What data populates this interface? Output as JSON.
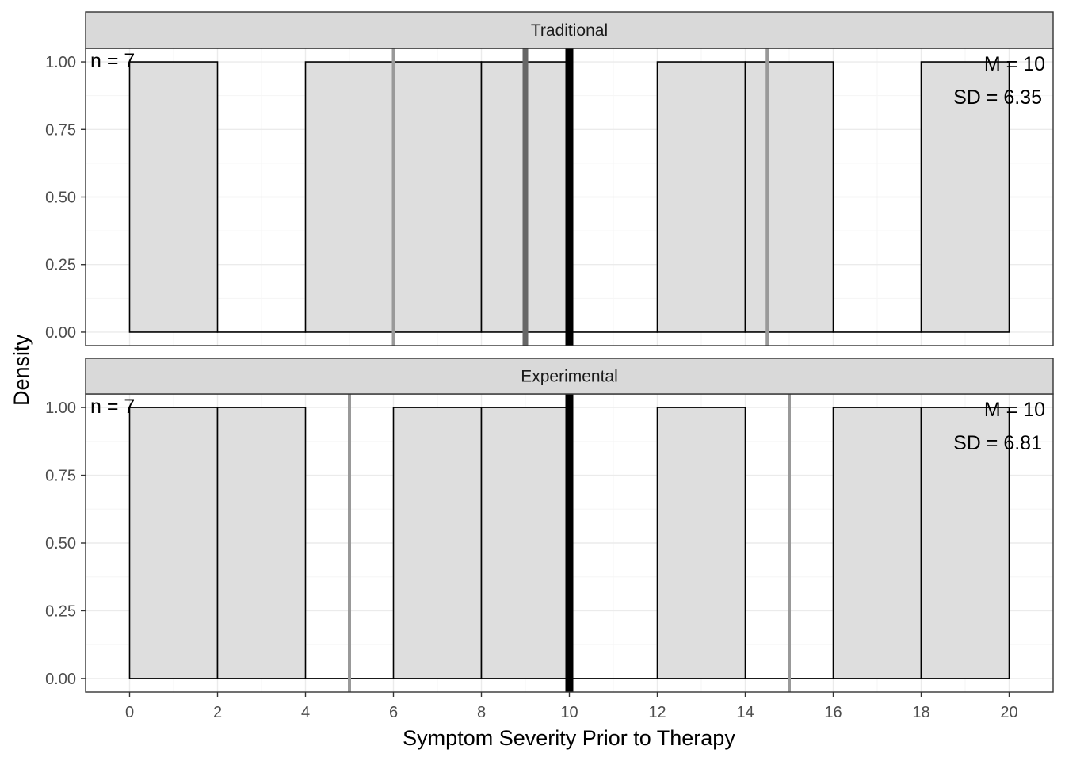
{
  "chart_data": {
    "type": "histogram",
    "xlabel": "Symptom Severity Prior to Therapy",
    "ylabel": "Density",
    "xlim": [
      -1,
      21
    ],
    "ylim": [
      -0.05,
      1.05
    ],
    "x_ticks": [
      0,
      2,
      4,
      6,
      8,
      10,
      12,
      14,
      16,
      18,
      20
    ],
    "y_ticks": [
      0,
      0.25,
      0.5,
      0.75,
      1.0
    ],
    "x_tick_labels": [
      "0",
      "2",
      "4",
      "6",
      "8",
      "10",
      "12",
      "14",
      "16",
      "18",
      "20"
    ],
    "y_tick_labels": [
      "0.00",
      "0.25",
      "0.50",
      "0.75",
      "1.00"
    ],
    "grid": true,
    "panels": [
      {
        "name": "Traditional",
        "bins": [
          {
            "start": 0,
            "end": 2,
            "density": 1.0
          },
          {
            "start": 2,
            "end": 4,
            "density": 0.0
          },
          {
            "start": 4,
            "end": 6,
            "density": 1.0
          },
          {
            "start": 6,
            "end": 8,
            "density": 1.0
          },
          {
            "start": 8,
            "end": 10,
            "density": 1.0
          },
          {
            "start": 10,
            "end": 12,
            "density": 0.0
          },
          {
            "start": 12,
            "end": 14,
            "density": 1.0
          },
          {
            "start": 14,
            "end": 16,
            "density": 1.0
          },
          {
            "start": 16,
            "end": 18,
            "density": 0.0
          },
          {
            "start": 18,
            "end": 20,
            "density": 1.0
          }
        ],
        "vlines": [
          {
            "x": 6,
            "color": "#999999",
            "kind": "quartile"
          },
          {
            "x": 9,
            "color": "#666666",
            "kind": "median"
          },
          {
            "x": 10,
            "color": "#000000",
            "kind": "mean"
          },
          {
            "x": 14.5,
            "color": "#999999",
            "kind": "quartile"
          }
        ],
        "n_label": "n = 7",
        "mean_label": "M = 10",
        "sd_label": "SD = 6.35"
      },
      {
        "name": "Experimental",
        "bins": [
          {
            "start": 0,
            "end": 2,
            "density": 1.0
          },
          {
            "start": 2,
            "end": 4,
            "density": 1.0
          },
          {
            "start": 4,
            "end": 6,
            "density": 0.0
          },
          {
            "start": 6,
            "end": 8,
            "density": 1.0
          },
          {
            "start": 8,
            "end": 10,
            "density": 1.0
          },
          {
            "start": 10,
            "end": 12,
            "density": 0.0
          },
          {
            "start": 12,
            "end": 14,
            "density": 1.0
          },
          {
            "start": 14,
            "end": 16,
            "density": 0.0
          },
          {
            "start": 16,
            "end": 18,
            "density": 1.0
          },
          {
            "start": 18,
            "end": 20,
            "density": 1.0
          }
        ],
        "vlines": [
          {
            "x": 5,
            "color": "#999999",
            "kind": "quartile"
          },
          {
            "x": 10,
            "color": "#666666",
            "kind": "median"
          },
          {
            "x": 10,
            "color": "#000000",
            "kind": "mean"
          },
          {
            "x": 15,
            "color": "#999999",
            "kind": "quartile"
          }
        ],
        "n_label": "n = 7",
        "mean_label": "M = 10",
        "sd_label": "SD = 6.81"
      }
    ],
    "colors": {
      "bar_fill": "#dedede",
      "bar_stroke": "#000000",
      "strip_fill": "#d9d9d9",
      "panel_border": "#333333",
      "grid_major": "#ebebeb",
      "grid_minor": "#f5f5f5"
    }
  }
}
